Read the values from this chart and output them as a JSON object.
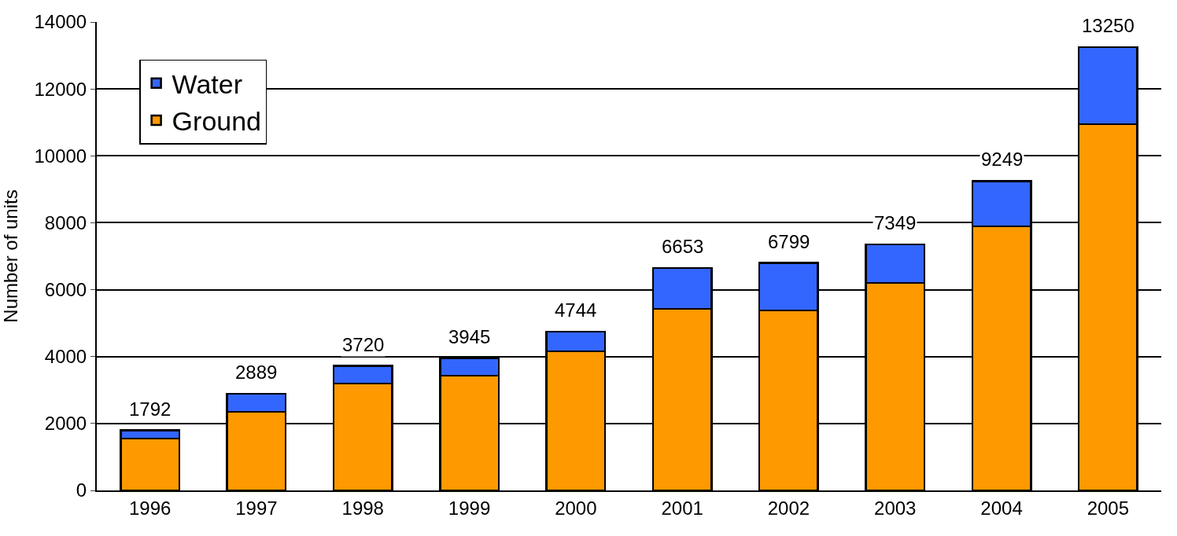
{
  "chart_data": {
    "type": "bar",
    "stacked": true,
    "ylabel": "Number of units",
    "categories": [
      "1996",
      "1997",
      "1998",
      "1999",
      "2000",
      "2001",
      "2002",
      "2003",
      "2004",
      "2005"
    ],
    "series": [
      {
        "name": "Ground",
        "color": "#ff9900",
        "values": [
          1550,
          2350,
          3200,
          3430,
          4160,
          5430,
          5380,
          6200,
          7890,
          10950
        ]
      },
      {
        "name": "Water",
        "color": "#3366ff",
        "values": [
          242,
          539,
          520,
          515,
          584,
          1223,
          1419,
          1149,
          1359,
          2300
        ]
      }
    ],
    "totals": [
      "1792",
      "2889",
      "3720",
      "3945",
      "4744",
      "6653",
      "6799",
      "7349",
      "9249",
      "13250"
    ],
    "ylim": [
      0,
      14000
    ],
    "yticks": [
      0,
      2000,
      4000,
      6000,
      8000,
      10000,
      12000,
      14000
    ],
    "grid": "y",
    "legend": "top left"
  }
}
